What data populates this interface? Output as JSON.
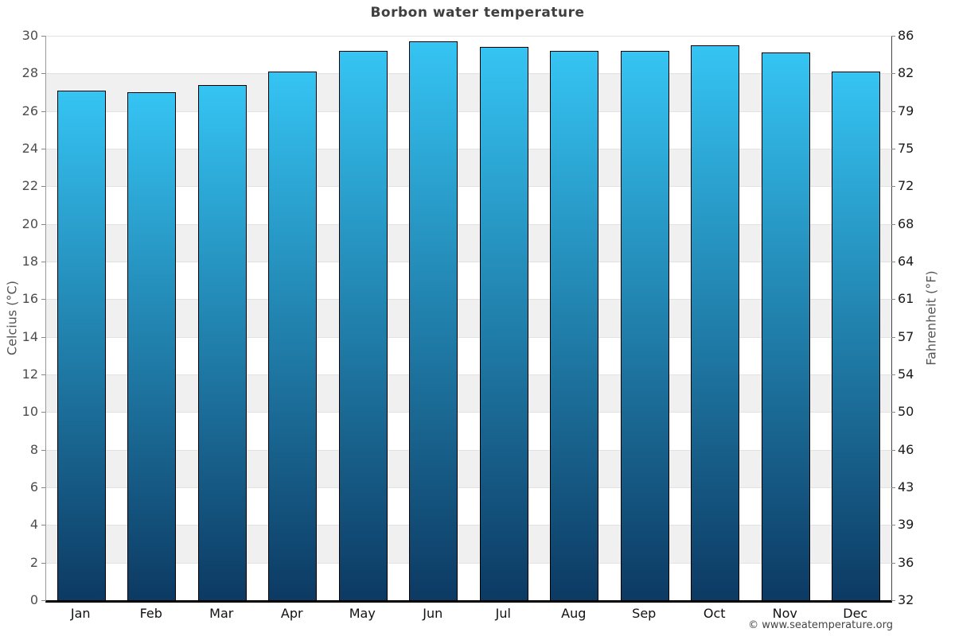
{
  "footer": {
    "copyright": "© www.seatemperature.org"
  },
  "chart_data": {
    "type": "bar",
    "title": "Borbon water temperature",
    "categories": [
      "Jan",
      "Feb",
      "Mar",
      "Apr",
      "May",
      "Jun",
      "Jul",
      "Aug",
      "Sep",
      "Oct",
      "Nov",
      "Dec"
    ],
    "values": [
      27.1,
      27.0,
      27.4,
      28.1,
      29.2,
      29.7,
      29.4,
      29.2,
      29.2,
      29.5,
      29.1,
      28.1
    ],
    "xlabel": "",
    "ylabel_left": "Celcius (°C)",
    "ylabel_right": "Fahrenheit (°F)",
    "ylim": [
      0,
      30
    ],
    "yticks_celsius": [
      0,
      2,
      4,
      6,
      8,
      10,
      12,
      14,
      16,
      18,
      20,
      22,
      24,
      26,
      28,
      30
    ],
    "yticks_fahrenheit": [
      "32",
      "36",
      "39",
      "43",
      "46",
      "50",
      "54",
      "57",
      "61",
      "64",
      "68",
      "72",
      "75",
      "79",
      "82",
      "86"
    ],
    "legend": "none",
    "grid": "alternating horizontal bands every 2°C",
    "colors": {
      "bar_gradient_top": "#35c4f3",
      "bar_gradient_bottom": "#0c3a63",
      "bar_border": "#000000",
      "band_gray": "#f0f0f0",
      "gridline": "#e2e2e2",
      "title_text": "#3f3f3f",
      "left_tick_text": "#4d4d4d",
      "right_tick_text": "#1a1a1a",
      "month_text": "#111111",
      "footer_text": "#444444",
      "left_axis_line": "#999999",
      "right_axis_line": "#444444",
      "bottom_axis_line": "#000000"
    }
  }
}
